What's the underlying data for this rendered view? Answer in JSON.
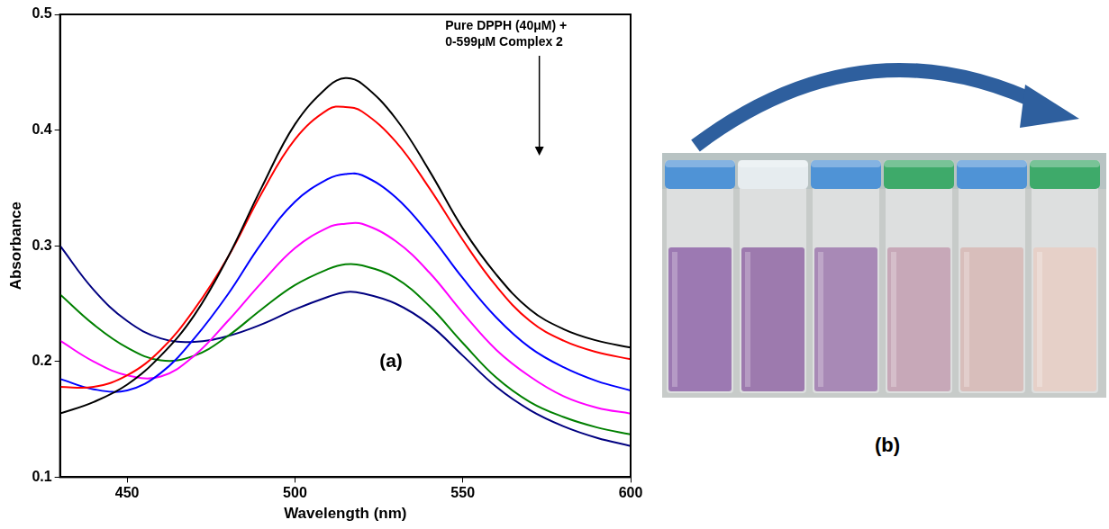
{
  "chart_data": {
    "type": "line",
    "x_label": "Wavelength (nm)",
    "y_label": "Absorbance",
    "annotation": [
      "Pure DPPH (40μM) +",
      "0-599μM Complex 2"
    ],
    "panel_label": "(a)",
    "x": [
      430,
      440,
      450,
      460,
      470,
      480,
      490,
      500,
      510,
      515,
      520,
      530,
      540,
      550,
      560,
      570,
      580,
      590,
      600
    ],
    "series": [
      {
        "color": "#000000",
        "values": [
          0.155,
          0.165,
          0.18,
          0.205,
          0.24,
          0.29,
          0.35,
          0.405,
          0.438,
          0.445,
          0.44,
          0.41,
          0.365,
          0.315,
          0.275,
          0.245,
          0.228,
          0.218,
          0.212
        ]
      },
      {
        "color": "#ff0000",
        "values": [
          0.178,
          0.178,
          0.188,
          0.21,
          0.245,
          0.29,
          0.345,
          0.392,
          0.418,
          0.42,
          0.416,
          0.39,
          0.35,
          0.305,
          0.265,
          0.235,
          0.218,
          0.208,
          0.202
        ]
      },
      {
        "color": "#0000ff",
        "values": [
          0.185,
          0.176,
          0.175,
          0.19,
          0.22,
          0.258,
          0.302,
          0.338,
          0.358,
          0.362,
          0.361,
          0.342,
          0.31,
          0.272,
          0.238,
          0.212,
          0.195,
          0.183,
          0.175
        ]
      },
      {
        "color": "#ff00ff",
        "values": [
          0.218,
          0.2,
          0.188,
          0.187,
          0.205,
          0.235,
          0.268,
          0.298,
          0.316,
          0.319,
          0.319,
          0.304,
          0.277,
          0.242,
          0.21,
          0.187,
          0.17,
          0.16,
          0.155
        ]
      },
      {
        "color": "#008000",
        "values": [
          0.258,
          0.232,
          0.212,
          0.201,
          0.205,
          0.222,
          0.245,
          0.266,
          0.28,
          0.284,
          0.283,
          0.272,
          0.248,
          0.216,
          0.186,
          0.165,
          0.152,
          0.143,
          0.137
        ]
      },
      {
        "color": "#000080",
        "values": [
          0.3,
          0.262,
          0.235,
          0.22,
          0.217,
          0.222,
          0.232,
          0.245,
          0.256,
          0.26,
          0.259,
          0.25,
          0.232,
          0.205,
          0.178,
          0.158,
          0.144,
          0.134,
          0.127
        ]
      }
    ],
    "xlim": [
      430,
      600
    ],
    "xticks": [
      450,
      500,
      550,
      600
    ],
    "ylim": [
      0.1,
      0.5
    ],
    "yticks": [
      0.1,
      0.2,
      0.3,
      0.4,
      0.5
    ],
    "grid": false
  },
  "panel_b": {
    "label": "(b)"
  }
}
